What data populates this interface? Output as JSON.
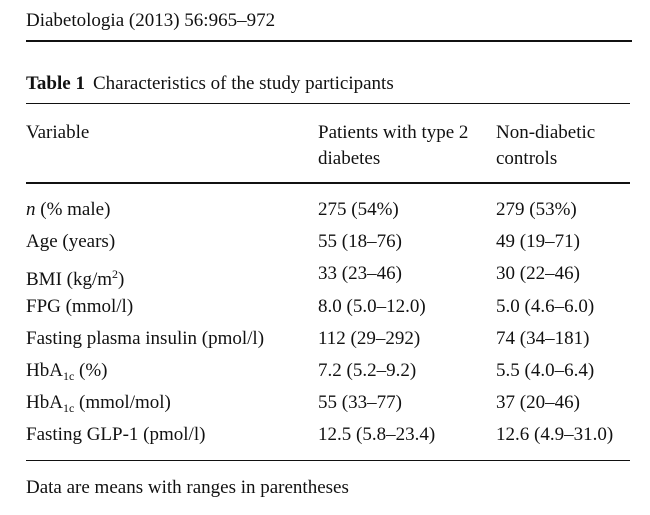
{
  "journal_header": "Diabetologia (2013) 56:965–972",
  "table": {
    "label": "Table 1",
    "title": "Characteristics of the study participants",
    "columns": [
      "Variable",
      "Patients with type 2 diabetes",
      "Non-diabetic controls"
    ],
    "rows": [
      {
        "variable": "n (% male)",
        "patients": "275 (54%)",
        "controls": "279 (53%)"
      },
      {
        "variable": "Age (years)",
        "patients": "55 (18–76)",
        "controls": "49 (19–71)"
      },
      {
        "variable": "BMI (kg/m2)",
        "patients": "33 (23–46)",
        "controls": "30 (22–46)"
      },
      {
        "variable": "FPG (mmol/l)",
        "patients": "8.0 (5.0–12.0)",
        "controls": "5.0 (4.6–6.0)"
      },
      {
        "variable": "Fasting plasma insulin (pmol/l)",
        "patients": "112 (29–292)",
        "controls": "74 (34–181)"
      },
      {
        "variable": "HbA1c (%)",
        "patients": "7.2 (5.2–9.2)",
        "controls": "5.5 (4.0–6.4)"
      },
      {
        "variable": "HbA1c (mmol/mol)",
        "patients": "55 (33–77)",
        "controls": "37 (20–46)"
      },
      {
        "variable": "Fasting GLP-1 (pmol/l)",
        "patients": "12.5 (5.8–23.4)",
        "controls": "12.6 (4.9–31.0)"
      }
    ],
    "footnote": "Data are means with ranges in parentheses"
  }
}
